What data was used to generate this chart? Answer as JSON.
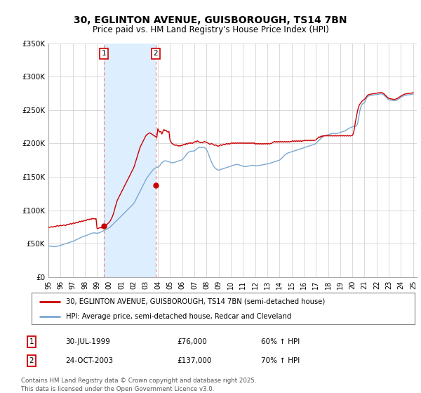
{
  "title": "30, EGLINTON AVENUE, GUISBOROUGH, TS14 7BN",
  "subtitle": "Price paid vs. HM Land Registry's House Price Index (HPI)",
  "legend_label_red": "30, EGLINTON AVENUE, GUISBOROUGH, TS14 7BN (semi-detached house)",
  "legend_label_blue": "HPI: Average price, semi-detached house, Redcar and Cleveland",
  "sale1_date": "30-JUL-1999",
  "sale1_price": "£76,000",
  "sale1_hpi": "60% ↑ HPI",
  "sale1_year": 1999.583,
  "sale1_value": 76000,
  "sale2_date": "24-OCT-2003",
  "sale2_price": "£137,000",
  "sale2_hpi": "70% ↑ HPI",
  "sale2_year": 2003.81,
  "sale2_value": 137000,
  "footer": "Contains HM Land Registry data © Crown copyright and database right 2025.\nThis data is licensed under the Open Government Licence v3.0.",
  "red_color": "#cc0000",
  "blue_color": "#7aa8d2",
  "vline_color": "#e88080",
  "shade_color": "#ddeeff",
  "grid_color": "#cccccc",
  "background_color": "#ffffff",
  "yticks": [
    0,
    50000,
    100000,
    150000,
    200000,
    250000,
    300000,
    350000
  ],
  "ytick_labels": [
    "£0",
    "£50K",
    "£100K",
    "£150K",
    "£200K",
    "£250K",
    "£300K",
    "£350K"
  ],
  "hpi_years": [
    1995.0,
    1995.083,
    1995.167,
    1995.25,
    1995.333,
    1995.417,
    1995.5,
    1995.583,
    1995.667,
    1995.75,
    1995.833,
    1995.917,
    1996.0,
    1996.083,
    1996.167,
    1996.25,
    1996.333,
    1996.417,
    1996.5,
    1996.583,
    1996.667,
    1996.75,
    1996.833,
    1996.917,
    1997.0,
    1997.083,
    1997.167,
    1997.25,
    1997.333,
    1997.417,
    1997.5,
    1997.583,
    1997.667,
    1997.75,
    1997.833,
    1997.917,
    1998.0,
    1998.083,
    1998.167,
    1998.25,
    1998.333,
    1998.417,
    1998.5,
    1998.583,
    1998.667,
    1998.75,
    1998.833,
    1998.917,
    1999.0,
    1999.083,
    1999.167,
    1999.25,
    1999.333,
    1999.417,
    1999.5,
    1999.583,
    1999.667,
    1999.75,
    1999.833,
    1999.917,
    2000.0,
    2000.083,
    2000.167,
    2000.25,
    2000.333,
    2000.417,
    2000.5,
    2000.583,
    2000.667,
    2000.75,
    2000.833,
    2000.917,
    2001.0,
    2001.083,
    2001.167,
    2001.25,
    2001.333,
    2001.417,
    2001.5,
    2001.583,
    2001.667,
    2001.75,
    2001.833,
    2001.917,
    2002.0,
    2002.083,
    2002.167,
    2002.25,
    2002.333,
    2002.417,
    2002.5,
    2002.583,
    2002.667,
    2002.75,
    2002.833,
    2002.917,
    2003.0,
    2003.083,
    2003.167,
    2003.25,
    2003.333,
    2003.417,
    2003.5,
    2003.583,
    2003.667,
    2003.75,
    2003.833,
    2003.917,
    2004.0,
    2004.083,
    2004.167,
    2004.25,
    2004.333,
    2004.417,
    2004.5,
    2004.583,
    2004.667,
    2004.75,
    2004.833,
    2004.917,
    2005.0,
    2005.083,
    2005.167,
    2005.25,
    2005.333,
    2005.417,
    2005.5,
    2005.583,
    2005.667,
    2005.75,
    2005.833,
    2005.917,
    2006.0,
    2006.083,
    2006.167,
    2006.25,
    2006.333,
    2006.417,
    2006.5,
    2006.583,
    2006.667,
    2006.75,
    2006.833,
    2006.917,
    2007.0,
    2007.083,
    2007.167,
    2007.25,
    2007.333,
    2007.417,
    2007.5,
    2007.583,
    2007.667,
    2007.75,
    2007.833,
    2007.917,
    2008.0,
    2008.083,
    2008.167,
    2008.25,
    2008.333,
    2008.417,
    2008.5,
    2008.583,
    2008.667,
    2008.75,
    2008.833,
    2008.917,
    2009.0,
    2009.083,
    2009.167,
    2009.25,
    2009.333,
    2009.417,
    2009.5,
    2009.583,
    2009.667,
    2009.75,
    2009.833,
    2009.917,
    2010.0,
    2010.083,
    2010.167,
    2010.25,
    2010.333,
    2010.417,
    2010.5,
    2010.583,
    2010.667,
    2010.75,
    2010.833,
    2010.917,
    2011.0,
    2011.083,
    2011.167,
    2011.25,
    2011.333,
    2011.417,
    2011.5,
    2011.583,
    2011.667,
    2011.75,
    2011.833,
    2011.917,
    2012.0,
    2012.083,
    2012.167,
    2012.25,
    2012.333,
    2012.417,
    2012.5,
    2012.583,
    2012.667,
    2012.75,
    2012.833,
    2012.917,
    2013.0,
    2013.083,
    2013.167,
    2013.25,
    2013.333,
    2013.417,
    2013.5,
    2013.583,
    2013.667,
    2013.75,
    2013.833,
    2013.917,
    2014.0,
    2014.083,
    2014.167,
    2014.25,
    2014.333,
    2014.417,
    2014.5,
    2014.583,
    2014.667,
    2014.75,
    2014.833,
    2014.917,
    2015.0,
    2015.083,
    2015.167,
    2015.25,
    2015.333,
    2015.417,
    2015.5,
    2015.583,
    2015.667,
    2015.75,
    2015.833,
    2015.917,
    2016.0,
    2016.083,
    2016.167,
    2016.25,
    2016.333,
    2016.417,
    2016.5,
    2016.583,
    2016.667,
    2016.75,
    2016.833,
    2016.917,
    2017.0,
    2017.083,
    2017.167,
    2017.25,
    2017.333,
    2017.417,
    2017.5,
    2017.583,
    2017.667,
    2017.75,
    2017.833,
    2017.917,
    2018.0,
    2018.083,
    2018.167,
    2018.25,
    2018.333,
    2018.417,
    2018.5,
    2018.583,
    2018.667,
    2018.75,
    2018.833,
    2018.917,
    2019.0,
    2019.083,
    2019.167,
    2019.25,
    2019.333,
    2019.417,
    2019.5,
    2019.583,
    2019.667,
    2019.75,
    2019.833,
    2019.917,
    2020.0,
    2020.083,
    2020.167,
    2020.25,
    2020.333,
    2020.417,
    2020.5,
    2020.583,
    2020.667,
    2020.75,
    2020.833,
    2020.917,
    2021.0,
    2021.083,
    2021.167,
    2021.25,
    2021.333,
    2021.417,
    2021.5,
    2021.583,
    2021.667,
    2021.75,
    2021.833,
    2021.917,
    2022.0,
    2022.083,
    2022.167,
    2022.25,
    2022.333,
    2022.417,
    2022.5,
    2022.583,
    2022.667,
    2022.75,
    2022.833,
    2022.917,
    2023.0,
    2023.083,
    2023.167,
    2023.25,
    2023.333,
    2023.417,
    2023.5,
    2023.583,
    2023.667,
    2023.75,
    2023.833,
    2023.917,
    2024.0,
    2024.083,
    2024.167,
    2024.25,
    2024.333,
    2024.417,
    2024.5,
    2024.583,
    2024.667,
    2024.75,
    2024.833,
    2024.917,
    2025.0
  ],
  "hpi_values": [
    47000,
    46500,
    46200,
    46000,
    45800,
    45500,
    45500,
    45700,
    46000,
    46200,
    46500,
    47000,
    47500,
    48000,
    48500,
    49000,
    49500,
    50000,
    50500,
    51000,
    51500,
    52000,
    52500,
    53000,
    53500,
    54000,
    54800,
    55500,
    56200,
    57000,
    57800,
    58500,
    59200,
    60000,
    60500,
    61000,
    61500,
    62000,
    62500,
    63200,
    64000,
    64500,
    65000,
    65500,
    66000,
    66200,
    66000,
    65800,
    65500,
    65800,
    66200,
    66800,
    67500,
    68200,
    69000,
    69800,
    70500,
    71200,
    72000,
    73000,
    74000,
    75000,
    76500,
    78000,
    79500,
    81000,
    82500,
    84000,
    85500,
    87000,
    88500,
    90000,
    91500,
    93000,
    94500,
    96000,
    97500,
    99000,
    100500,
    102000,
    103500,
    105000,
    106500,
    108000,
    110000,
    112000,
    115000,
    118000,
    121000,
    124000,
    127000,
    130000,
    133000,
    136000,
    139000,
    142000,
    145000,
    148000,
    150000,
    152000,
    154000,
    156000,
    158000,
    160000,
    161500,
    162500,
    163500,
    164000,
    164500,
    165500,
    167000,
    169000,
    171000,
    172500,
    173500,
    174000,
    174000,
    173500,
    173000,
    172500,
    172000,
    171500,
    171000,
    171000,
    171500,
    172000,
    172500,
    173000,
    173500,
    174000,
    174500,
    175000,
    176000,
    177000,
    179000,
    181000,
    183000,
    185000,
    186500,
    187500,
    188000,
    188500,
    188500,
    188500,
    189000,
    190000,
    191000,
    192500,
    193500,
    194000,
    194000,
    194000,
    194000,
    194000,
    193500,
    193000,
    191000,
    188000,
    184000,
    180000,
    176000,
    172000,
    169000,
    166000,
    164000,
    162500,
    161500,
    160500,
    160000,
    160500,
    161000,
    161500,
    162000,
    162500,
    163000,
    163500,
    164000,
    164500,
    165000,
    165500,
    166000,
    166500,
    167000,
    167500,
    168000,
    168500,
    168500,
    168500,
    168000,
    167500,
    167000,
    166500,
    166000,
    165500,
    165500,
    165500,
    165800,
    166200,
    166500,
    166800,
    167000,
    167200,
    167200,
    167000,
    166800,
    166500,
    166500,
    166800,
    167200,
    167500,
    167800,
    168000,
    168200,
    168500,
    168800,
    169000,
    169200,
    169500,
    170000,
    170500,
    171000,
    171500,
    172000,
    172500,
    173000,
    173500,
    174000,
    174500,
    175000,
    176000,
    177500,
    179000,
    180500,
    182000,
    183500,
    184500,
    185500,
    186000,
    186500,
    187000,
    187500,
    188000,
    188500,
    189000,
    189500,
    190000,
    190500,
    191000,
    191500,
    192000,
    192500,
    193000,
    193500,
    194000,
    194500,
    195000,
    195500,
    196000,
    196500,
    197000,
    197500,
    198000,
    198500,
    199000,
    200000,
    201500,
    203000,
    204500,
    206000,
    207500,
    209000,
    210000,
    211000,
    211500,
    212000,
    212500,
    213000,
    213500,
    214000,
    214500,
    215000,
    215000,
    215000,
    214500,
    214500,
    215000,
    215500,
    216000,
    216500,
    217000,
    217500,
    218000,
    218500,
    219000,
    220000,
    221000,
    222000,
    223000,
    223500,
    224000,
    225000,
    225500,
    225500,
    225800,
    226200,
    229000,
    236000,
    246000,
    253000,
    257000,
    259000,
    260000,
    261000,
    264000,
    268000,
    270000,
    271000,
    271500,
    271800,
    272000,
    272200,
    272500,
    272800,
    273000,
    273200,
    273500,
    273800,
    274000,
    274200,
    274000,
    273500,
    272500,
    271000,
    269500,
    268000,
    266500,
    265500,
    265000,
    264800,
    264500,
    264200,
    264000,
    264000,
    264500,
    265000,
    266000,
    267000,
    268000,
    269000,
    270000,
    270800,
    271500,
    272000,
    272300,
    272500,
    272700,
    272900,
    273000,
    273200,
    273500,
    274000
  ],
  "red_years": [
    1995.0,
    1995.083,
    1995.167,
    1995.25,
    1995.333,
    1995.417,
    1995.5,
    1995.583,
    1995.667,
    1995.75,
    1995.833,
    1995.917,
    1996.0,
    1996.083,
    1996.167,
    1996.25,
    1996.333,
    1996.417,
    1996.5,
    1996.583,
    1996.667,
    1996.75,
    1996.833,
    1996.917,
    1997.0,
    1997.083,
    1997.167,
    1997.25,
    1997.333,
    1997.417,
    1997.5,
    1997.583,
    1997.667,
    1997.75,
    1997.833,
    1997.917,
    1998.0,
    1998.083,
    1998.167,
    1998.25,
    1998.333,
    1998.417,
    1998.5,
    1998.583,
    1998.667,
    1998.75,
    1998.833,
    1998.917,
    1999.0,
    1999.083,
    1999.167,
    1999.25,
    1999.333,
    1999.417,
    1999.5,
    1999.583,
    1999.667,
    1999.75,
    1999.833,
    1999.917,
    2000.0,
    2000.083,
    2000.167,
    2000.25,
    2000.333,
    2000.417,
    2000.5,
    2000.583,
    2000.667,
    2000.75,
    2000.833,
    2000.917,
    2001.0,
    2001.083,
    2001.167,
    2001.25,
    2001.333,
    2001.417,
    2001.5,
    2001.583,
    2001.667,
    2001.75,
    2001.833,
    2001.917,
    2002.0,
    2002.083,
    2002.167,
    2002.25,
    2002.333,
    2002.417,
    2002.5,
    2002.583,
    2002.667,
    2002.75,
    2002.833,
    2002.917,
    2003.0,
    2003.083,
    2003.167,
    2003.25,
    2003.333,
    2003.417,
    2003.5,
    2003.583,
    2003.667,
    2003.75,
    2003.833,
    2003.917,
    2004.0,
    2004.083,
    2004.167,
    2004.25,
    2004.333,
    2004.417,
    2004.5,
    2004.583,
    2004.667,
    2004.75,
    2004.833,
    2004.917,
    2005.0,
    2005.083,
    2005.167,
    2005.25,
    2005.333,
    2005.417,
    2005.5,
    2005.583,
    2005.667,
    2005.75,
    2005.833,
    2005.917,
    2006.0,
    2006.083,
    2006.167,
    2006.25,
    2006.333,
    2006.417,
    2006.5,
    2006.583,
    2006.667,
    2006.75,
    2006.833,
    2006.917,
    2007.0,
    2007.083,
    2007.167,
    2007.25,
    2007.333,
    2007.417,
    2007.5,
    2007.583,
    2007.667,
    2007.75,
    2007.833,
    2007.917,
    2008.0,
    2008.083,
    2008.167,
    2008.25,
    2008.333,
    2008.417,
    2008.5,
    2008.583,
    2008.667,
    2008.75,
    2008.833,
    2008.917,
    2009.0,
    2009.083,
    2009.167,
    2009.25,
    2009.333,
    2009.417,
    2009.5,
    2009.583,
    2009.667,
    2009.75,
    2009.833,
    2009.917,
    2010.0,
    2010.083,
    2010.167,
    2010.25,
    2010.333,
    2010.417,
    2010.5,
    2010.583,
    2010.667,
    2010.75,
    2010.833,
    2010.917,
    2011.0,
    2011.083,
    2011.167,
    2011.25,
    2011.333,
    2011.417,
    2011.5,
    2011.583,
    2011.667,
    2011.75,
    2011.833,
    2011.917,
    2012.0,
    2012.083,
    2012.167,
    2012.25,
    2012.333,
    2012.417,
    2012.5,
    2012.583,
    2012.667,
    2012.75,
    2012.833,
    2012.917,
    2013.0,
    2013.083,
    2013.167,
    2013.25,
    2013.333,
    2013.417,
    2013.5,
    2013.583,
    2013.667,
    2013.75,
    2013.833,
    2013.917,
    2014.0,
    2014.083,
    2014.167,
    2014.25,
    2014.333,
    2014.417,
    2014.5,
    2014.583,
    2014.667,
    2014.75,
    2014.833,
    2014.917,
    2015.0,
    2015.083,
    2015.167,
    2015.25,
    2015.333,
    2015.417,
    2015.5,
    2015.583,
    2015.667,
    2015.75,
    2015.833,
    2015.917,
    2016.0,
    2016.083,
    2016.167,
    2016.25,
    2016.333,
    2016.417,
    2016.5,
    2016.583,
    2016.667,
    2016.75,
    2016.833,
    2016.917,
    2017.0,
    2017.083,
    2017.167,
    2017.25,
    2017.333,
    2017.417,
    2017.5,
    2017.583,
    2017.667,
    2017.75,
    2017.833,
    2017.917,
    2018.0,
    2018.083,
    2018.167,
    2018.25,
    2018.333,
    2018.417,
    2018.5,
    2018.583,
    2018.667,
    2018.75,
    2018.833,
    2018.917,
    2019.0,
    2019.083,
    2019.167,
    2019.25,
    2019.333,
    2019.417,
    2019.5,
    2019.583,
    2019.667,
    2019.75,
    2019.833,
    2019.917,
    2020.0,
    2020.083,
    2020.167,
    2020.25,
    2020.333,
    2020.417,
    2020.5,
    2020.583,
    2020.667,
    2020.75,
    2020.833,
    2020.917,
    2021.0,
    2021.083,
    2021.167,
    2021.25,
    2021.333,
    2021.417,
    2021.5,
    2021.583,
    2021.667,
    2021.75,
    2021.833,
    2021.917,
    2022.0,
    2022.083,
    2022.167,
    2022.25,
    2022.333,
    2022.417,
    2022.5,
    2022.583,
    2022.667,
    2022.75,
    2022.833,
    2022.917,
    2023.0,
    2023.083,
    2023.167,
    2023.25,
    2023.333,
    2023.417,
    2023.5,
    2023.583,
    2023.667,
    2023.75,
    2023.833,
    2023.917,
    2024.0,
    2024.083,
    2024.167,
    2024.25,
    2024.333,
    2024.417,
    2024.5,
    2024.583,
    2024.667,
    2024.75,
    2024.833,
    2024.917,
    2025.0
  ],
  "red_values": [
    75000,
    74200,
    74800,
    75500,
    74800,
    75200,
    76000,
    75500,
    76500,
    77000,
    76200,
    76800,
    77500,
    76800,
    77200,
    78000,
    77500,
    77000,
    78500,
    79000,
    78200,
    79500,
    80000,
    79200,
    80500,
    81000,
    80200,
    81500,
    82000,
    81200,
    82800,
    83500,
    82800,
    84000,
    83200,
    84500,
    85000,
    84200,
    85800,
    86500,
    85800,
    87000,
    86200,
    87800,
    87000,
    87500,
    86800,
    87500,
    73000,
    72500,
    73500,
    74200,
    73500,
    74500,
    75500,
    76000,
    77500,
    78500,
    79000,
    80500,
    82000,
    84000,
    87000,
    90000,
    94000,
    99000,
    105000,
    110000,
    115000,
    118000,
    121000,
    124000,
    127000,
    130000,
    133000,
    136000,
    139000,
    142000,
    145000,
    148000,
    151000,
    154000,
    157000,
    160000,
    163000,
    167000,
    172000,
    177000,
    182000,
    187000,
    192000,
    196000,
    199000,
    202000,
    205000,
    208000,
    211000,
    213000,
    214000,
    215000,
    216000,
    215000,
    214000,
    213000,
    212000,
    211000,
    210000,
    209000,
    222000,
    219000,
    217000,
    218000,
    214000,
    218000,
    221000,
    219000,
    220000,
    218000,
    217000,
    218000,
    205000,
    202000,
    200000,
    199000,
    198000,
    197000,
    198000,
    197000,
    196000,
    197000,
    196000,
    197000,
    197000,
    198000,
    199000,
    198000,
    200000,
    199000,
    200000,
    201000,
    200000,
    201000,
    200000,
    201000,
    202000,
    203000,
    202000,
    204000,
    203000,
    202000,
    201000,
    202000,
    201000,
    202000,
    203000,
    202000,
    202000,
    201000,
    200000,
    199000,
    199000,
    200000,
    199000,
    198000,
    197000,
    198000,
    197000,
    196000,
    196000,
    197000,
    198000,
    197000,
    198000,
    199000,
    198000,
    199000,
    200000,
    199000,
    200000,
    199000,
    200000,
    201000,
    200000,
    201000,
    200000,
    201000,
    200000,
    201000,
    200000,
    201000,
    200000,
    201000,
    200000,
    201000,
    200000,
    201000,
    200000,
    201000,
    200000,
    201000,
    200000,
    201000,
    200000,
    201000,
    199000,
    200000,
    199000,
    200000,
    199000,
    200000,
    199000,
    200000,
    199000,
    200000,
    199000,
    200000,
    199000,
    200000,
    199000,
    200000,
    200000,
    201000,
    202000,
    203000,
    202000,
    203000,
    202000,
    203000,
    202000,
    203000,
    202000,
    203000,
    202000,
    203000,
    202000,
    203000,
    202000,
    203000,
    202000,
    203000,
    203000,
    204000,
    203000,
    204000,
    203000,
    204000,
    203000,
    204000,
    203000,
    204000,
    203000,
    204000,
    204000,
    205000,
    204000,
    205000,
    204000,
    205000,
    204000,
    205000,
    204000,
    205000,
    204000,
    205000,
    205000,
    207000,
    208000,
    210000,
    209000,
    211000,
    210000,
    212000,
    211000,
    212000,
    211000,
    212000,
    211000,
    212000,
    211000,
    212000,
    211000,
    212000,
    211000,
    212000,
    211000,
    212000,
    211000,
    212000,
    211000,
    212000,
    211000,
    212000,
    211000,
    212000,
    211000,
    212000,
    211000,
    212000,
    211000,
    212000,
    212000,
    215000,
    222000,
    232000,
    240000,
    248000,
    254000,
    258000,
    260000,
    262000,
    264000,
    265000,
    266000,
    268000,
    270000,
    272000,
    273000,
    273500,
    273800,
    274000,
    274200,
    274500,
    274800,
    275000,
    275200,
    275500,
    275800,
    276000,
    276200,
    276000,
    275500,
    274500,
    273000,
    271500,
    270000,
    268500,
    267500,
    267000,
    266800,
    266500,
    266200,
    266000,
    266000,
    266500,
    267000,
    268000,
    269000,
    270000,
    271000,
    272000,
    272800,
    273500,
    274000,
    274300,
    274500,
    274700,
    274900,
    275000,
    275200,
    275500,
    276000
  ]
}
